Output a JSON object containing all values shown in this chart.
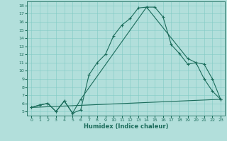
{
  "xlabel": "Humidex (Indice chaleur)",
  "background_color": "#b2dfdb",
  "grid_color": "#80cbc4",
  "line_color": "#1a6b5a",
  "xlim": [
    -0.5,
    23.5
  ],
  "ylim": [
    4.5,
    18.5
  ],
  "xticks": [
    0,
    1,
    2,
    3,
    4,
    5,
    6,
    7,
    8,
    9,
    10,
    11,
    12,
    13,
    14,
    15,
    16,
    17,
    18,
    19,
    20,
    21,
    22,
    23
  ],
  "yticks": [
    5,
    6,
    7,
    8,
    9,
    10,
    11,
    12,
    13,
    14,
    15,
    16,
    17,
    18
  ],
  "curve1_x": [
    0,
    1,
    2,
    3,
    4,
    5,
    6,
    7,
    8,
    9,
    10,
    11,
    12,
    13,
    14,
    15,
    16,
    17,
    18,
    19,
    20,
    21,
    22,
    23
  ],
  "curve1_y": [
    5.5,
    5.8,
    6.0,
    5.0,
    6.3,
    4.8,
    5.2,
    9.5,
    11.0,
    12.0,
    14.3,
    15.6,
    16.4,
    17.7,
    17.8,
    17.8,
    16.6,
    13.2,
    12.1,
    10.8,
    11.0,
    9.0,
    7.5,
    6.5
  ],
  "curve2_x": [
    0,
    1,
    2,
    3,
    4,
    5,
    6,
    14,
    19,
    20,
    21,
    22,
    23
  ],
  "curve2_y": [
    5.5,
    5.8,
    6.0,
    5.0,
    6.3,
    4.8,
    6.5,
    17.8,
    11.5,
    11.0,
    10.8,
    9.0,
    6.5
  ],
  "curve3_x": [
    0,
    23
  ],
  "curve3_y": [
    5.5,
    6.5
  ],
  "xlabel_fontsize": 6,
  "tick_fontsize": 4.5,
  "linewidth": 0.8,
  "marker_size": 3
}
